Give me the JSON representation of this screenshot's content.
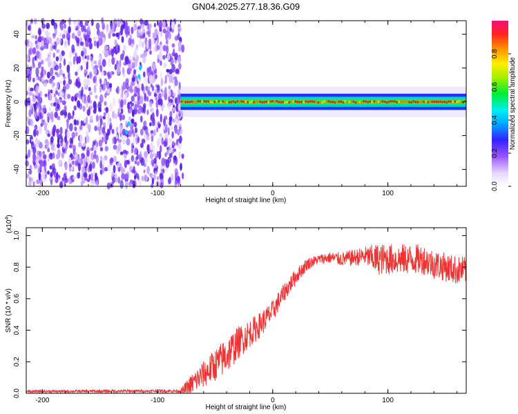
{
  "title": "GN04.2025.277.18.36.G09",
  "colors": {
    "series": "#ee3333",
    "axis": "#000000"
  },
  "chart_data": [
    {
      "type": "heatmap",
      "name": "spectrogram",
      "xlabel": "Height of straight line (km)",
      "ylabel": "Frequency (Hz)",
      "xlim": [
        -214,
        168
      ],
      "ylim": [
        -50,
        48
      ],
      "xticks": [
        -200,
        -100,
        0,
        100
      ],
      "yticks": [
        -40,
        -20,
        0,
        20,
        40
      ],
      "xtick_labels": [
        "-200",
        "-100",
        "0",
        "100"
      ],
      "ytick_labels": [
        "-40",
        "-20",
        "0",
        "20",
        "40"
      ],
      "noise_region_x": [
        -214,
        -78
      ],
      "signal_x": [
        -80,
        168
      ],
      "signal_center_hz": 0,
      "signal_halfwidth_hz": 3,
      "colorbar": {
        "label": "Normalized spectral amplitude",
        "range": [
          0,
          1
        ],
        "ticks": [
          0.0,
          0.2,
          0.4,
          0.6,
          0.8
        ],
        "tick_labels": [
          "0.0",
          "0.2",
          "0.4",
          "0.6",
          "0.8"
        ]
      }
    },
    {
      "type": "line",
      "name": "snr",
      "xlabel": "Height of straight line (km)",
      "ylabel": "SNR (10 * v/v)",
      "scale_note": "(x10",
      "scale_exp": "4",
      "scale_close": ")",
      "xlim": [
        -214,
        168
      ],
      "ylim": [
        0,
        1.05
      ],
      "xticks": [
        -200,
        -100,
        0,
        100
      ],
      "yticks": [
        0.0,
        0.2,
        0.4,
        0.6,
        0.8,
        1.0
      ],
      "xtick_labels": [
        "-200",
        "-100",
        "0",
        "100"
      ],
      "ytick_labels": [
        "0.0",
        "0.2",
        "0.4",
        "0.6",
        "0.8",
        "1.0"
      ],
      "profile_x": [
        -214,
        -80,
        -75,
        -70,
        -60,
        -50,
        -40,
        -30,
        -20,
        -10,
        0,
        10,
        20,
        30,
        40,
        50,
        60,
        70,
        80,
        90,
        100,
        110,
        120,
        130,
        140,
        150,
        160,
        168
      ],
      "profile_y": [
        0.012,
        0.015,
        0.02,
        0.06,
        0.12,
        0.18,
        0.24,
        0.32,
        0.38,
        0.44,
        0.52,
        0.64,
        0.74,
        0.82,
        0.85,
        0.86,
        0.85,
        0.86,
        0.87,
        0.85,
        0.85,
        0.85,
        0.85,
        0.85,
        0.82,
        0.8,
        0.78,
        0.78
      ],
      "noise_x": [
        -214,
        -80,
        -75,
        -40,
        -20,
        20,
        40,
        80,
        90,
        168
      ],
      "noise_amp": [
        0.008,
        0.01,
        0.06,
        0.12,
        0.09,
        0.05,
        0.03,
        0.06,
        0.1,
        0.09
      ]
    }
  ]
}
